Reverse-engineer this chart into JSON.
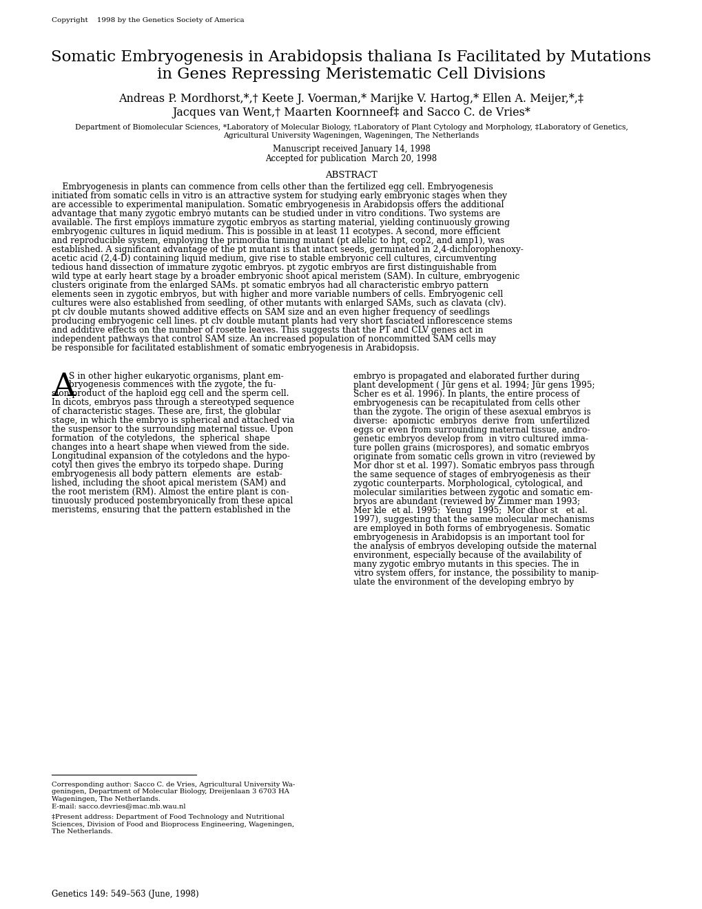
{
  "background_color": "#ffffff",
  "copyright_text": "Copyright    1998 by the Genetics Society of America",
  "title_line1": "Somatic Embryogenesis in Arabidopsis thaliana Is Facilitated by Mutations",
  "title_line2": "in Genes Repressing Meristematic Cell Divisions",
  "authors_line1": "Andreas P. Mordhorst,*,† Keete J. Voerman,* Marijke V. Hartog,* Ellen A. Meijer,*,‡",
  "authors_line2": "Jacques van Went,† Maarten Koornneef‡ and Sacco C. de Vries*",
  "affiliation_line1": "Department of Biomolecular Sciences, *Laboratory of Molecular Biology, †Laboratory of Plant Cytology and Morphology, ‡Laboratory of Genetics,",
  "affiliation_line2": "Agricultural University Wageningen, Wageningen, The Netherlands",
  "manuscript_line1": "Manuscript received January 14, 1998",
  "manuscript_line2": "Accepted for publication  March 20, 1998",
  "abstract_title": "ABSTRACT",
  "abstract_lines": [
    "    Embryogenesis in plants can commence from cells other than the fertilized egg cell. Embryogenesis",
    "initiated from somatic cells in vitro is an attractive system for studying early embryonic stages when they",
    "are accessible to experimental manipulation. Somatic embryogenesis in Arabidopsis offers the additional",
    "advantage that many zygotic embryo mutants can be studied under in vitro conditions. Two systems are",
    "available. The first employs immature zygotic embryos as starting material, yielding continuously growing",
    "embryogenic cultures in liquid medium. This is possible in at least 11 ecotypes. A second, more efficient",
    "and reproducible system, employing the primordia timing mutant (pt allelic to hpt, cop2, and amp1), was",
    "established. A significant advantage of the pt mutant is that intact seeds, germinated in 2,4-dichlorophenoxy-",
    "acetic acid (2,4-D) containing liquid medium, give rise to stable embryonic cell cultures, circumventing",
    "tedious hand dissection of immature zygotic embryos. pt zygotic embryos are first distinguishable from",
    "wild type at early heart stage by a broader embryonic shoot apical meristem (SAM). In culture, embryogenic",
    "clusters originate from the enlarged SAMs. pt somatic embryos had all characteristic embryo pattern",
    "elements seen in zygotic embryos, but with higher and more variable numbers of cells. Embryogenic cell",
    "cultures were also established from seedling, of other mutants with enlarged SAMs, such as clavata (clv).",
    "pt clv double mutants showed additive effects on SAM size and an even higher frequency of seedlings",
    "producing embryogenic cell lines. pt clv double mutant plants had very short fasciated inflorescence stems",
    "and additive effects on the number of rosette leaves. This suggests that the PT and CLV genes act in",
    "independent pathways that control SAM size. An increased population of noncommitted SAM cells may",
    "be responsible for facilitated establishment of somatic embryogenesis in Arabidopsis."
  ],
  "dropcap_letter": "A",
  "left_col_lines": [
    "S in other higher eukaryotic organisms, plant em-",
    "bryogenesis commences with the zygote, the fu-",
    "sion product of the haploid egg cell and the sperm cell.",
    "In dicots, embryos pass through a stereotyped sequence",
    "of characteristic stages. These are, first, the globular",
    "stage, in which the embryo is spherical and attached via",
    "the suspensor to the surrounding maternal tissue. Upon",
    "formation  of the cotyledons,  the  spherical  shape",
    "changes into a heart shape when viewed from the side.",
    "Longitudinal expansion of the cotyledons and the hypo-",
    "cotyl then gives the embryo its torpedo shape. During",
    "embryogenesis all body pattern  elements  are  estab-",
    "lished, including the shoot apical meristem (SAM) and",
    "the root meristem (RM). Almost the entire plant is con-",
    "tinuously produced postembryonically from these apical",
    "meristems, ensuring that the pattern established in the"
  ],
  "right_col_lines": [
    "embryo is propagated and elaborated further during",
    "plant development ( Jür gens et al. 1994; Jür gens 1995;",
    "Scher es et al. 1996). In plants, the entire process of",
    "embryogenesis can be recapitulated from cells other",
    "than the zygote. The origin of these asexual embryos is",
    "diverse:  apomictic  embryos  derive  from  unfertilized",
    "eggs or even from surrounding maternal tissue, andro-",
    "genetic embryos develop from  in vitro cultured imma-",
    "ture pollen grains (microspores), and somatic embryos",
    "originate from somatic cells grown in vitro (reviewed by",
    "Mor dhor st et al. 1997). Somatic embryos pass through",
    "the same sequence of stages of embryogenesis as their",
    "zygotic counterparts. Morphological, cytological, and",
    "molecular similarities between zygotic and somatic em-",
    "bryos are abundant (reviewed by Zimmer man 1993;",
    "Mer kle  et al. 1995;  Yeung  1995;  Mor dhor st   et al.",
    "1997), suggesting that the same molecular mechanisms",
    "are employed in both forms of embryogenesis. Somatic",
    "embryogenesis in Arabidopsis is an important tool for",
    "the analysis of embryos developing outside the maternal",
    "environment, especially because of the availability of",
    "many zygotic embryo mutants in this species. The in",
    "vitro system offers, for instance, the possibility to manip-",
    "ulate the environment of the developing embryo by"
  ],
  "footnote_lines": [
    "Corresponding author: Sacco C. de Vries, Agricultural University Wa-",
    "geningen, Department of Molecular Biology, Dreijenlaan 3 6703 HA",
    "Wageningen, The Netherlands.",
    "E-mail: sacco.devries@mac.mb.wau.nl",
    "‡Present address: Department of Food Technology and Nutritional",
    "Sciences, Division of Food and Bioprocess Engineering, Wageningen,",
    "The Netherlands."
  ],
  "genetics_footer": "Genetics 149: 549–563 (June, 1998)"
}
